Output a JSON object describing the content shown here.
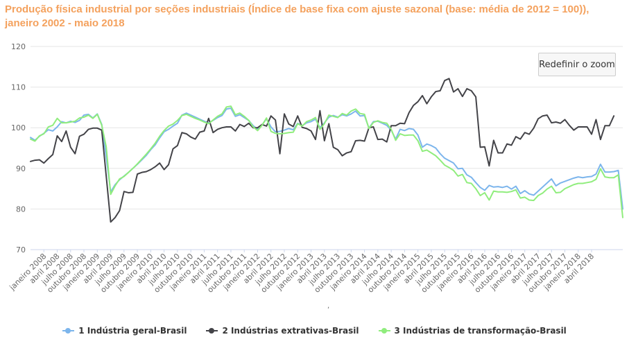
{
  "title": "Produção física industrial por seções industriais (Índice de base fixa com ajuste sazonal (base: média de 2012 = 100)), janeiro 2002 - maio 2018",
  "reset_zoom_label": "Redefinir o zoom",
  "stray_mark": ",",
  "colors": {
    "series1": "#7cb5ec",
    "series2": "#434348",
    "series3": "#90ed7d",
    "title": "#f4a15d",
    "grid": "#e6e6e6",
    "axis_text": "#666666"
  },
  "chart_data": {
    "type": "line",
    "title": "Produção física industrial por seções industriais (Índice de base fixa com ajuste sazonal (base: média de 2012 = 100)), janeiro 2002 - maio 2018",
    "xlabel": "",
    "ylabel": "",
    "ylim": [
      70,
      120
    ],
    "yticks": [
      70,
      80,
      90,
      100,
      110,
      120
    ],
    "x_start": "2007-10",
    "x_end": "2018-05",
    "grid": true,
    "legend_position": "bottom",
    "x_tick_labels": [
      "janeiro 2008",
      "abril 2008",
      "julho 2008",
      "outubro 2008",
      "janeiro 2009",
      "abril 2009",
      "julho 2009",
      "outubro 2009",
      "janeiro 2010",
      "abril 2010",
      "julho 2010",
      "outubro 2010",
      "janeiro 2011",
      "abril 2011",
      "julho 2011",
      "outubro 2011",
      "janeiro 2012",
      "abril 2012",
      "julho 2012",
      "outubro 2012",
      "janeiro 2013",
      "abril 2013",
      "julho 2013",
      "outubro 2013",
      "janeiro 2014",
      "abril 2014",
      "julho 2014",
      "outubro 2014",
      "janeiro 2015",
      "abril 2015",
      "julho 2015",
      "outubro 2015",
      "janeiro 2016",
      "abril 2016",
      "julho 2016",
      "outubro 2016",
      "janeiro 2017",
      "abril 2017",
      "julho 2017",
      "outubro 2017",
      "janeiro 2018",
      "abril 2018"
    ],
    "series": [
      {
        "name": "1 Indústria geral-Brasil",
        "values": [
          97.6,
          96.9,
          97.9,
          98.6,
          99.5,
          99.2,
          100.2,
          101.5,
          101.2,
          101.6,
          101.3,
          101.8,
          103.1,
          103.3,
          102.4,
          103.4,
          100.8,
          92.8,
          84.2,
          86.0,
          87.2,
          88.1,
          89.0,
          90.0,
          91.0,
          92.1,
          93.2,
          94.6,
          95.8,
          97.5,
          99.0,
          99.6,
          100.4,
          101.1,
          103.1,
          103.6,
          103.1,
          102.6,
          102.1,
          101.6,
          101.2,
          101.8,
          102.5,
          103.0,
          104.6,
          104.8,
          102.8,
          103.2,
          102.5,
          101.8,
          100.5,
          99.6,
          100.7,
          102.2,
          100.2,
          99.0,
          99.1,
          99.4,
          99.8,
          99.5,
          101.1,
          100.5,
          101.2,
          101.5,
          102.1,
          100.0,
          101.2,
          102.6,
          103.0,
          102.6,
          103.2,
          102.9,
          103.4,
          104.1,
          102.9,
          103.0,
          99.9,
          101.5,
          101.6,
          101.1,
          100.6,
          99.4,
          97.2,
          99.6,
          99.3,
          99.8,
          99.6,
          98.2,
          95.2,
          96.0,
          95.6,
          95.0,
          93.6,
          92.5,
          91.9,
          91.3,
          89.9,
          90.0,
          88.4,
          87.8,
          86.5,
          85.3,
          84.6,
          85.8,
          85.4,
          85.5,
          85.3,
          85.6,
          84.9,
          85.6,
          83.8,
          84.5,
          83.7,
          83.4,
          84.4,
          85.4,
          86.4,
          87.4,
          85.7,
          86.4,
          86.8,
          87.2,
          87.6,
          87.9,
          87.7,
          87.9,
          88.0,
          88.6,
          91.0,
          89.1,
          89.1,
          89.2,
          89.5,
          80.0
        ],
        "color": "#7cb5ec"
      },
      {
        "name": "2 Indústrias extrativas-Brasil",
        "values": [
          91.7,
          92.0,
          92.1,
          91.3,
          92.4,
          93.4,
          98.0,
          96.6,
          99.2,
          95.2,
          93.6,
          97.9,
          98.4,
          99.6,
          99.9,
          99.9,
          99.4,
          88.1,
          76.8,
          77.9,
          79.6,
          84.3,
          84.0,
          84.1,
          88.6,
          89.0,
          89.2,
          89.7,
          90.4,
          91.3,
          89.7,
          90.9,
          94.8,
          95.6,
          98.8,
          98.5,
          97.7,
          97.2,
          98.9,
          99.2,
          102.3,
          98.8,
          99.6,
          100.0,
          100.2,
          100.2,
          99.2,
          100.8,
          100.3,
          101.1,
          100.0,
          100.0,
          100.8,
          100.4,
          102.9,
          101.9,
          93.6,
          103.4,
          100.9,
          100.3,
          102.9,
          100.1,
          99.8,
          99.2,
          97.1,
          104.2,
          96.8,
          101.0,
          95.2,
          94.6,
          93.1,
          93.8,
          94.1,
          96.8,
          96.9,
          96.7,
          100.0,
          100.2,
          97.1,
          97.2,
          96.5,
          100.5,
          100.5,
          101.1,
          101.0,
          103.7,
          105.5,
          106.4,
          107.9,
          105.9,
          107.6,
          108.9,
          109.1,
          111.6,
          112.1,
          108.8,
          109.6,
          107.7,
          109.6,
          109.1,
          107.6,
          95.2,
          95.3,
          90.6,
          96.9,
          93.8,
          93.8,
          96.0,
          95.7,
          97.8,
          97.2,
          98.8,
          98.4,
          99.9,
          102.2,
          102.9,
          103.1,
          101.2,
          101.4,
          101.1,
          102.0,
          100.6,
          99.4,
          100.2,
          100.2,
          100.2,
          98.4,
          102.0,
          97.1,
          100.5,
          100.5,
          102.9
        ],
        "color": "#434348"
      },
      {
        "name": "3 Indústrias de transformação-Brasil",
        "values": [
          97.2,
          96.7,
          98.0,
          98.5,
          100.2,
          100.6,
          102.3,
          101.2,
          101.2,
          101.4,
          101.6,
          102.4,
          102.6,
          103.1,
          102.3,
          103.3,
          100.6,
          95.3,
          83.6,
          85.7,
          87.4,
          88.0,
          89.0,
          90.0,
          91.1,
          92.3,
          93.5,
          94.8,
          96.2,
          97.9,
          99.3,
          100.4,
          100.9,
          101.8,
          103.0,
          103.3,
          102.8,
          102.3,
          101.9,
          101.4,
          101.0,
          101.9,
          102.8,
          103.4,
          105.1,
          105.3,
          103.2,
          103.6,
          102.8,
          101.8,
          100.2,
          99.3,
          100.6,
          102.4,
          99.1,
          98.6,
          98.5,
          98.6,
          98.8,
          98.9,
          101.0,
          100.4,
          101.5,
          101.9,
          102.5,
          99.6,
          101.0,
          103.1,
          102.8,
          102.5,
          103.5,
          103.1,
          104.1,
          104.6,
          103.5,
          103.3,
          99.8,
          101.3,
          101.7,
          101.3,
          101.1,
          99.6,
          96.9,
          98.5,
          98.1,
          98.2,
          98.2,
          96.8,
          94.2,
          94.5,
          93.8,
          93.1,
          92.0,
          90.8,
          90.2,
          89.5,
          88.1,
          88.5,
          86.5,
          86.3,
          85.0,
          83.3,
          84.0,
          82.2,
          84.4,
          84.2,
          84.2,
          84.1,
          84.3,
          84.7,
          82.7,
          82.9,
          82.2,
          82.1,
          83.3,
          83.9,
          84.9,
          85.6,
          84.0,
          84.1,
          85.0,
          85.5,
          86.0,
          86.3,
          86.3,
          86.5,
          86.7,
          87.3,
          89.9,
          87.9,
          87.7,
          87.7,
          88.4,
          77.9
        ],
        "color": "#90ed7d"
      }
    ]
  }
}
